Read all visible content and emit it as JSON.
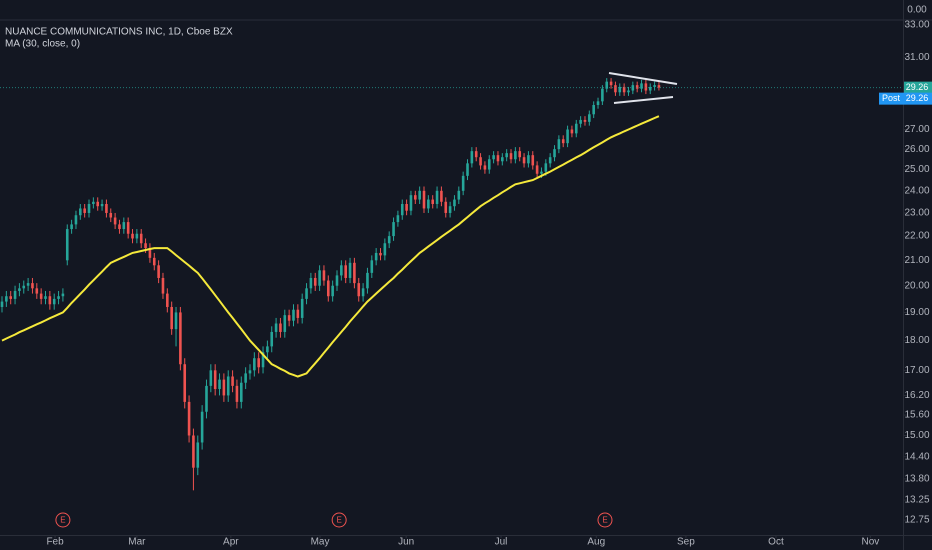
{
  "chart_data": {
    "type": "candlestick",
    "title": "NUANCE COMMUNICATIONS INC, 1D, Cboe BZX",
    "indicator_label": "MA (30, close, 0)",
    "top_pane_label": "0.00",
    "log_scale": true,
    "grid": false,
    "up_color": "#26a69a",
    "down_color": "#ef5350",
    "ma_color": "#f5e93b",
    "ylim": [
      12.39,
      33.32
    ],
    "yticks": [
      {
        "value": 33,
        "label": "33.00"
      },
      {
        "value": 31,
        "label": "31.00"
      },
      {
        "value": 27,
        "label": "27.00"
      },
      {
        "value": 26,
        "label": "26.00"
      },
      {
        "value": 25,
        "label": "25.00"
      },
      {
        "value": 24,
        "label": "24.00"
      },
      {
        "value": 23,
        "label": "23.00"
      },
      {
        "value": 22,
        "label": "22.00"
      },
      {
        "value": 21,
        "label": "21.00"
      },
      {
        "value": 20,
        "label": "20.00"
      },
      {
        "value": 19,
        "label": "19.00"
      },
      {
        "value": 18,
        "label": "18.00"
      },
      {
        "value": 17,
        "label": "17.00"
      },
      {
        "value": 16.2,
        "label": "16.20"
      },
      {
        "value": 15.6,
        "label": "15.60"
      },
      {
        "value": 15,
        "label": "15.00"
      },
      {
        "value": 14.4,
        "label": "14.40"
      },
      {
        "value": 13.8,
        "label": "13.80"
      },
      {
        "value": 13.25,
        "label": "13.25"
      },
      {
        "value": 12.75,
        "label": "12.75"
      }
    ],
    "xlim": [
      -0.46,
      207.1
    ],
    "xticks": [
      {
        "value": 12.2,
        "label": "Feb"
      },
      {
        "value": 31.0,
        "label": "Mar"
      },
      {
        "value": 52.6,
        "label": "Apr"
      },
      {
        "value": 73.1,
        "label": "May"
      },
      {
        "value": 92.9,
        "label": "Jun"
      },
      {
        "value": 114.7,
        "label": "Jul"
      },
      {
        "value": 136.6,
        "label": "Aug"
      },
      {
        "value": 157.2,
        "label": "Sep"
      },
      {
        "value": 177.9,
        "label": "Oct"
      },
      {
        "value": 199.6,
        "label": "Nov"
      }
    ],
    "events": [
      {
        "x": 14.0,
        "label": "E"
      },
      {
        "x": 77.5,
        "label": "E"
      },
      {
        "x": 138.6,
        "label": "E"
      }
    ],
    "last_price": {
      "value": 29.26,
      "label": "29.26"
    },
    "post_market": {
      "name": "Post",
      "value": 29.26,
      "label": "29.26"
    },
    "open": [
      19.2,
      19.4,
      19.6,
      19.5,
      19.8,
      19.9,
      20.0,
      20.1,
      19.9,
      19.7,
      19.5,
      19.6,
      19.3,
      19.5,
      19.6,
      21.0,
      22.3,
      22.5,
      22.9,
      23.2,
      23.0,
      23.4,
      23.5,
      23.3,
      23.4,
      23.0,
      22.8,
      22.5,
      22.3,
      22.6,
      22.1,
      21.9,
      22.1,
      21.7,
      21.5,
      21.1,
      20.8,
      20.3,
      19.7,
      19.2,
      18.4,
      19.0,
      17.2,
      16.0,
      15.0,
      14.1,
      14.8,
      15.7,
      16.5,
      17.0,
      16.4,
      16.7,
      16.2,
      16.8,
      16.5,
      16.0,
      16.6,
      16.9,
      17.0,
      17.4,
      17.1,
      17.6,
      17.8,
      18.3,
      18.6,
      18.3,
      18.9,
      18.7,
      19.1,
      18.8,
      19.5,
      19.9,
      20.3,
      20.0,
      20.6,
      20.2,
      19.6,
      20.0,
      20.4,
      20.8,
      20.3,
      20.9,
      20.1,
      19.6,
      19.9,
      20.5,
      21.0,
      21.3,
      21.2,
      21.7,
      22.0,
      22.6,
      22.9,
      23.4,
      23.1,
      23.8,
      23.6,
      24.0,
      23.2,
      23.6,
      23.4,
      24.0,
      23.5,
      23.0,
      23.3,
      23.6,
      24.0,
      24.7,
      25.3,
      25.9,
      25.6,
      25.2,
      25.0,
      25.5,
      25.7,
      25.4,
      25.6,
      25.8,
      25.5,
      25.9,
      25.6,
      25.3,
      25.7,
      25.2,
      24.8,
      24.9,
      25.3,
      25.6,
      26.0,
      26.5,
      26.3,
      27.0,
      26.8,
      27.3,
      27.5,
      27.4,
      27.8,
      28.3,
      28.5,
      29.2,
      29.6,
      29.4,
      29.0,
      29.3,
      29.0,
      29.1,
      29.4,
      29.2,
      29.5,
      29.1,
      29.3,
      29.4
    ],
    "high": [
      19.6,
      19.8,
      19.8,
      20.0,
      20.1,
      20.2,
      20.3,
      20.3,
      20.1,
      19.9,
      19.8,
      19.8,
      19.7,
      19.8,
      19.9,
      22.5,
      22.7,
      23.1,
      23.4,
      23.4,
      23.6,
      23.7,
      23.7,
      23.6,
      23.6,
      23.2,
      23.0,
      22.7,
      22.8,
      22.8,
      22.3,
      22.3,
      22.3,
      21.9,
      21.7,
      21.3,
      21.0,
      20.5,
      19.9,
      19.4,
      19.2,
      19.2,
      17.4,
      16.2,
      15.2,
      15.0,
      15.9,
      16.7,
      17.2,
      17.2,
      16.9,
      16.9,
      17.0,
      17.0,
      16.7,
      16.8,
      17.1,
      17.2,
      17.6,
      17.6,
      17.8,
      18.0,
      18.5,
      18.8,
      18.8,
      19.1,
      19.1,
      19.3,
      19.3,
      19.7,
      20.1,
      20.5,
      20.5,
      20.8,
      20.8,
      20.4,
      20.2,
      20.6,
      21.0,
      21.0,
      21.1,
      21.1,
      20.3,
      20.1,
      20.7,
      21.2,
      21.5,
      21.5,
      21.9,
      22.2,
      22.8,
      23.1,
      23.6,
      23.6,
      24.0,
      24.0,
      24.2,
      24.2,
      23.8,
      23.8,
      24.2,
      24.2,
      23.7,
      23.5,
      23.8,
      24.2,
      24.9,
      25.5,
      26.1,
      26.1,
      25.8,
      25.4,
      25.7,
      25.9,
      25.9,
      25.8,
      26.0,
      26.0,
      26.1,
      26.1,
      25.8,
      25.9,
      25.9,
      25.4,
      25.1,
      25.5,
      25.8,
      26.2,
      26.7,
      26.7,
      27.2,
      27.2,
      27.5,
      27.7,
      27.7,
      28.0,
      28.5,
      28.7,
      29.4,
      29.8,
      29.8,
      29.6,
      29.5,
      29.5,
      29.3,
      29.6,
      29.6,
      29.7,
      29.7,
      29.5,
      29.6,
      29.6
    ],
    "low": [
      19.0,
      19.2,
      19.3,
      19.3,
      19.6,
      19.7,
      19.8,
      19.7,
      19.5,
      19.3,
      19.3,
      19.1,
      19.1,
      19.3,
      19.4,
      20.8,
      22.1,
      22.3,
      22.7,
      22.8,
      22.8,
      23.2,
      23.1,
      23.1,
      22.8,
      22.6,
      22.3,
      22.1,
      22.1,
      21.9,
      21.7,
      21.7,
      21.5,
      21.3,
      20.9,
      20.6,
      20.1,
      19.5,
      19.0,
      18.2,
      17.8,
      17.0,
      15.8,
      14.8,
      13.5,
      13.9,
      14.6,
      15.5,
      16.3,
      16.2,
      16.2,
      16.0,
      16.0,
      16.3,
      15.8,
      15.8,
      16.4,
      16.7,
      16.8,
      16.9,
      16.9,
      17.4,
      17.6,
      18.1,
      18.1,
      18.1,
      18.5,
      18.5,
      18.6,
      18.6,
      19.3,
      19.7,
      19.8,
      19.8,
      20.0,
      19.4,
      19.4,
      19.8,
      20.2,
      20.1,
      20.1,
      19.9,
      19.4,
      19.4,
      19.7,
      20.3,
      20.8,
      21.0,
      21.0,
      21.5,
      21.8,
      22.4,
      22.7,
      22.9,
      22.9,
      23.4,
      23.4,
      23.0,
      23.0,
      23.2,
      23.2,
      23.3,
      22.8,
      22.8,
      23.1,
      23.4,
      23.8,
      24.5,
      25.1,
      25.4,
      25.0,
      24.8,
      24.8,
      25.3,
      25.2,
      25.2,
      25.4,
      25.3,
      25.3,
      25.4,
      25.1,
      25.1,
      25.0,
      24.6,
      24.6,
      24.7,
      25.1,
      25.4,
      25.8,
      26.1,
      26.1,
      26.6,
      26.6,
      27.1,
      27.2,
      27.2,
      27.6,
      28.1,
      28.3,
      29.0,
      29.2,
      28.8,
      28.8,
      28.8,
      28.8,
      28.9,
      29.0,
      29.0,
      28.9,
      28.9,
      29.1,
      29.1
    ],
    "close": [
      19.4,
      19.6,
      19.5,
      19.8,
      19.9,
      20.0,
      20.1,
      19.9,
      19.7,
      19.5,
      19.6,
      19.3,
      19.5,
      19.6,
      19.7,
      22.3,
      22.5,
      22.9,
      23.2,
      23.0,
      23.4,
      23.5,
      23.3,
      23.4,
      23.0,
      22.8,
      22.5,
      22.3,
      22.6,
      22.1,
      21.9,
      22.1,
      21.7,
      21.5,
      21.1,
      20.8,
      20.3,
      19.7,
      19.2,
      18.4,
      19.0,
      17.2,
      16.0,
      15.0,
      14.1,
      14.8,
      15.7,
      16.5,
      17.0,
      16.4,
      16.7,
      16.2,
      16.8,
      16.5,
      16.0,
      16.6,
      16.9,
      17.0,
      17.4,
      17.1,
      17.6,
      17.8,
      18.3,
      18.6,
      18.3,
      18.9,
      18.7,
      19.1,
      18.8,
      19.5,
      19.9,
      20.3,
      20.0,
      20.6,
      20.2,
      19.6,
      20.0,
      20.4,
      20.8,
      20.3,
      20.9,
      20.1,
      19.6,
      19.9,
      20.5,
      21.0,
      21.3,
      21.2,
      21.7,
      22.0,
      22.6,
      22.9,
      23.4,
      23.1,
      23.8,
      23.6,
      24.0,
      23.2,
      23.6,
      23.4,
      24.0,
      23.5,
      23.0,
      23.3,
      23.6,
      24.0,
      24.7,
      25.3,
      25.9,
      25.6,
      25.2,
      25.0,
      25.5,
      25.7,
      25.4,
      25.6,
      25.8,
      25.5,
      25.9,
      25.6,
      25.3,
      25.7,
      25.2,
      24.8,
      24.9,
      25.3,
      25.6,
      26.0,
      26.5,
      26.3,
      27.0,
      26.8,
      27.3,
      27.5,
      27.4,
      27.8,
      28.3,
      28.5,
      29.2,
      29.6,
      29.4,
      29.0,
      29.3,
      29.0,
      29.1,
      29.4,
      29.2,
      29.5,
      29.1,
      29.3,
      29.4,
      29.26
    ],
    "ma": [
      18.0,
      18.07,
      18.14,
      18.21,
      18.29,
      18.36,
      18.43,
      18.5,
      18.57,
      18.64,
      18.71,
      18.79,
      18.86,
      18.93,
      19.0,
      19.17,
      19.35,
      19.52,
      19.69,
      19.86,
      20.04,
      20.21,
      20.38,
      20.55,
      20.73,
      20.9,
      20.98,
      21.06,
      21.14,
      21.22,
      21.3,
      21.34,
      21.38,
      21.42,
      21.46,
      21.5,
      21.5,
      21.5,
      21.5,
      21.36,
      21.21,
      21.07,
      20.93,
      20.79,
      20.64,
      20.5,
      20.29,
      20.07,
      19.86,
      19.64,
      19.43,
      19.21,
      19.0,
      18.8,
      18.6,
      18.4,
      18.2,
      18.0,
      17.84,
      17.68,
      17.52,
      17.36,
      17.2,
      17.13,
      17.05,
      16.98,
      16.9,
      16.85,
      16.8,
      16.85,
      16.9,
      17.07,
      17.23,
      17.4,
      17.58,
      17.76,
      17.94,
      18.12,
      18.3,
      18.48,
      18.67,
      18.85,
      19.03,
      19.22,
      19.4,
      19.55,
      19.7,
      19.85,
      20.0,
      20.15,
      20.3,
      20.47,
      20.63,
      20.8,
      20.97,
      21.13,
      21.3,
      21.43,
      21.57,
      21.7,
      21.83,
      21.97,
      22.1,
      22.23,
      22.37,
      22.5,
      22.66,
      22.82,
      22.98,
      23.14,
      23.3,
      23.43,
      23.55,
      23.68,
      23.8,
      23.93,
      24.05,
      24.18,
      24.3,
      24.35,
      24.4,
      24.45,
      24.5,
      24.6,
      24.7,
      24.8,
      24.9,
      25.01,
      25.13,
      25.24,
      25.36,
      25.47,
      25.59,
      25.7,
      25.83,
      25.96,
      26.09,
      26.21,
      26.34,
      26.47,
      26.6,
      26.7,
      26.8,
      26.9,
      27.0,
      27.1,
      27.2,
      27.3,
      27.4,
      27.5,
      27.6,
      27.7
    ]
  }
}
